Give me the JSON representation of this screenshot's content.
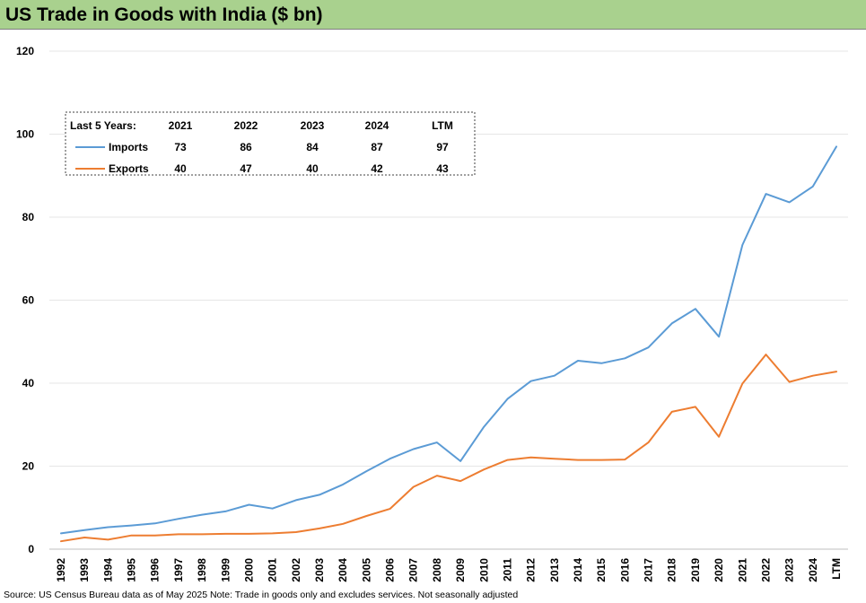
{
  "header": {
    "title": "US Trade in Goods with India ($ bn)"
  },
  "footer": {
    "source": "Source: US Census Bureau data as of May 2025 Note: Trade in goods only and excludes services. Not seasonally adjusted"
  },
  "chart_data": {
    "type": "line",
    "title": "US Trade in Goods with India ($ bn)",
    "xlabel": "",
    "ylabel": "",
    "ylim": [
      0,
      120
    ],
    "yticks": [
      0,
      20,
      40,
      60,
      80,
      100,
      120
    ],
    "grid": true,
    "categories": [
      "1992",
      "1993",
      "1994",
      "1995",
      "1996",
      "1997",
      "1998",
      "1999",
      "2000",
      "2001",
      "2002",
      "2003",
      "2004",
      "2005",
      "2006",
      "2007",
      "2008",
      "2009",
      "2010",
      "2011",
      "2012",
      "2013",
      "2014",
      "2015",
      "2016",
      "2017",
      "2018",
      "2019",
      "2020",
      "2021",
      "2022",
      "2023",
      "2024",
      "LTM"
    ],
    "series": [
      {
        "name": "Imports",
        "color": "#5b9bd5",
        "values": [
          3.8,
          4.6,
          5.3,
          5.7,
          6.2,
          7.3,
          8.3,
          9.1,
          10.7,
          9.8,
          11.8,
          13.1,
          15.6,
          18.8,
          21.8,
          24.1,
          25.7,
          21.2,
          29.5,
          36.2,
          40.5,
          41.8,
          45.4,
          44.8,
          46.0,
          48.6,
          54.4,
          57.9,
          51.2,
          73.3,
          85.6,
          83.6,
          87.4,
          97.0
        ]
      },
      {
        "name": "Exports",
        "color": "#ed7d31",
        "values": [
          1.9,
          2.8,
          2.3,
          3.3,
          3.3,
          3.6,
          3.6,
          3.7,
          3.7,
          3.8,
          4.1,
          5.0,
          6.1,
          8.0,
          9.7,
          15.0,
          17.7,
          16.4,
          19.2,
          21.5,
          22.1,
          21.8,
          21.5,
          21.5,
          21.6,
          25.7,
          33.1,
          34.3,
          27.1,
          39.9,
          46.9,
          40.3,
          41.8,
          42.8
        ]
      }
    ],
    "legend_table": {
      "label": "Last 5 Years:",
      "columns": [
        "2021",
        "2022",
        "2023",
        "2024",
        "LTM"
      ],
      "rows": [
        {
          "name": "Imports",
          "color": "#5b9bd5",
          "values": [
            "73",
            "86",
            "84",
            "87",
            "97"
          ]
        },
        {
          "name": "Exports",
          "color": "#ed7d31",
          "values": [
            "40",
            "47",
            "40",
            "42",
            "43"
          ]
        }
      ]
    }
  }
}
